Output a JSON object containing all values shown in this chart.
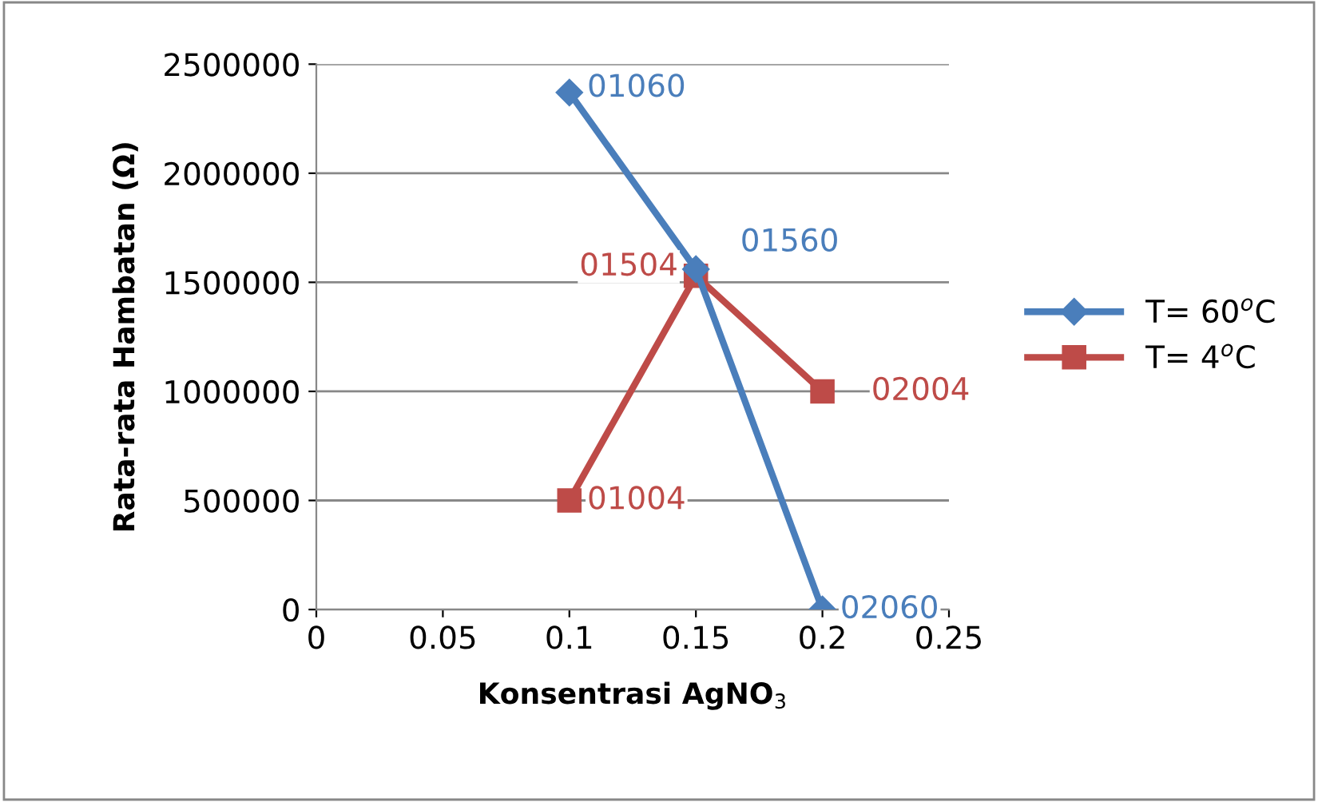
{
  "chart_data": {
    "type": "line",
    "xlabel": "Konsentrasi AgNO$_{3}$",
    "ylabel": "Rata-rata Hambatan (Ω)",
    "x": [
      0.1,
      0.15,
      0.2
    ],
    "series": [
      {
        "name": "T= 60$^{o}$C",
        "color": "#4a7ebb",
        "marker": "diamond",
        "values": [
          2370000,
          1560000,
          0
        ]
      },
      {
        "name": "T= 4$^{o}$C",
        "color": "#be4b48",
        "marker": "square",
        "values": [
          500000,
          1530000,
          1000000
        ]
      }
    ],
    "annotations": [
      {
        "text": "01060",
        "x": 0.1,
        "y": 2370000
      },
      {
        "text": "01560",
        "x": 0.15,
        "y": 1560000
      },
      {
        "text": "02060",
        "x": 0.2,
        "y": 0
      },
      {
        "text": "01004",
        "x": 0.1,
        "y": 500000
      },
      {
        "text": "01504",
        "x": 0.15,
        "y": 1530000
      },
      {
        "text": "02004",
        "x": 0.2,
        "y": 1000000
      }
    ],
    "xlim": [
      0,
      0.25
    ],
    "xticks": [
      0,
      0.05,
      0.1,
      0.15,
      0.2,
      0.25
    ],
    "ylim": [
      0,
      2500000
    ],
    "yticks": [
      0,
      500000,
      1000000,
      1500000,
      2000000,
      2500000
    ],
    "grid": "y",
    "legend": "right",
    "line_style": "solid"
  }
}
